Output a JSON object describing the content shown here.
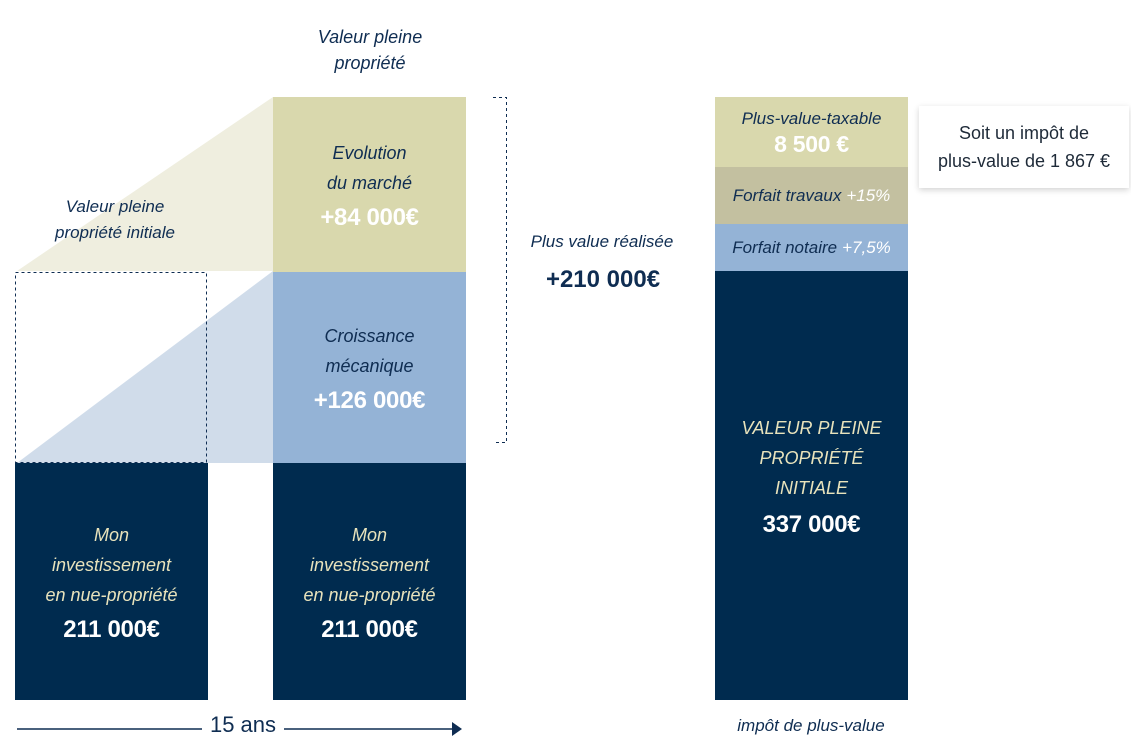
{
  "left": {
    "initial_label_line1": "Valeur pleine",
    "initial_label_line2": "propriété initiale",
    "investment_col1": {
      "line1": "Mon",
      "line2": "investissement",
      "line3": "en nue-propriété",
      "value": "211 000€"
    },
    "timeline_label": "15 ans"
  },
  "middle": {
    "top_label_line1": "Valeur pleine",
    "top_label_line2": "propriété",
    "market": {
      "line1": "Evolution",
      "line2": "du marché",
      "value": "+84 000€"
    },
    "mechanical": {
      "line1": "Croissance",
      "line2": "mécanique",
      "value": "+126 000€"
    },
    "investment_col2": {
      "line1": "Mon",
      "line2": "investissement",
      "line3": "en nue-propriété",
      "value": "211 000€"
    }
  },
  "realized": {
    "label": "Plus value réalisée",
    "value": "+210 000€"
  },
  "right": {
    "taxable": {
      "label": "Plus-value-taxable",
      "value": "8 500 €"
    },
    "works": {
      "label": "Forfait travaux",
      "pct": "+15%"
    },
    "notary": {
      "label": "Forfait notaire",
      "pct": "+7,5%"
    },
    "initial": {
      "line1": "VALEUR PLEINE",
      "line2": "PROPRIÉTÉ",
      "line3": "INITIALE",
      "value": "337 000€"
    },
    "callout_line1": "Soit un impôt de",
    "callout_line2": "plus-value de 1 867 €",
    "footer_label": "impôt de plus-value"
  },
  "colors": {
    "navy": "#002b4f",
    "khaki": "#d9d8ad",
    "light_khaki": "#efeedf",
    "blue": "#94b3d6",
    "light_blue": "#d0dcea",
    "olive": "#c3c0a0",
    "cream_text": "#e8e3bc"
  }
}
